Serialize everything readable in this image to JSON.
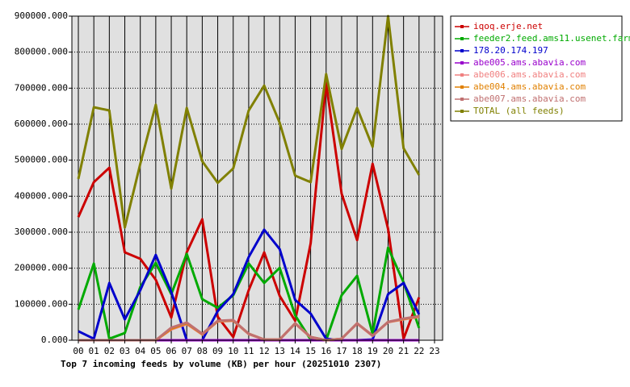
{
  "chart_data": {
    "type": "line",
    "title": "Top 7 incoming feeds by volume (KB) per hour (20251010 2307)",
    "categories": [
      "00",
      "01",
      "02",
      "03",
      "04",
      "05",
      "06",
      "07",
      "08",
      "09",
      "10",
      "11",
      "12",
      "13",
      "14",
      "15",
      "16",
      "17",
      "18",
      "19",
      "20",
      "21",
      "22",
      "23"
    ],
    "series": [
      {
        "name": "iqoq.erje.net",
        "color": "#cc0000",
        "values": [
          342000,
          439000,
          479000,
          244000,
          226000,
          168000,
          63000,
          244000,
          336000,
          65000,
          9000,
          139000,
          244000,
          123000,
          54000,
          269000,
          714000,
          407000,
          278000,
          490000,
          309000,
          4000,
          119000,
          null
        ]
      },
      {
        "name": "feeder2.feed.ams11.usenet.farm",
        "color": "#00aa00",
        "values": [
          85000,
          213000,
          4000,
          20000,
          148000,
          215000,
          128000,
          240000,
          114000,
          90000,
          125000,
          213000,
          159000,
          201000,
          69000,
          2000,
          0,
          125000,
          179000,
          18000,
          257000,
          161000,
          34000,
          null
        ]
      },
      {
        "name": "178.20.174.197",
        "color": "#0000cc",
        "values": [
          25000,
          4000,
          159000,
          58000,
          139000,
          237000,
          134000,
          0,
          0,
          81000,
          128000,
          231000,
          307000,
          253000,
          112000,
          74000,
          4000,
          0,
          0,
          2000,
          128000,
          159000,
          72000,
          null
        ]
      },
      {
        "name": "abe005.ams.abavia.com",
        "color": "#9900cc",
        "values": [
          0,
          0,
          0,
          0,
          0,
          0,
          0,
          0,
          0,
          0,
          0,
          0,
          0,
          0,
          0,
          0,
          0,
          0,
          0,
          0,
          0,
          0,
          0,
          null
        ]
      },
      {
        "name": "abe006.ams.abavia.com",
        "color": "#f08080",
        "values": [
          0,
          0,
          0,
          0,
          0,
          0,
          30000,
          45000,
          16000,
          52000,
          54000,
          17000,
          2000,
          2000,
          46000,
          8000,
          0,
          4000,
          46000,
          12000,
          50000,
          58000,
          65000,
          null
        ]
      },
      {
        "name": "abe004.ams.abavia.com",
        "color": "#e08000",
        "values": [
          0,
          0,
          0,
          0,
          0,
          0,
          32000,
          47000,
          17000,
          53000,
          55000,
          18000,
          2000,
          2000,
          47000,
          9000,
          0,
          4000,
          47000,
          13000,
          51000,
          59000,
          66000,
          null
        ]
      },
      {
        "name": "abe007.ams.abavia.com",
        "color": "#c07070",
        "values": [
          0,
          0,
          0,
          0,
          0,
          0,
          35000,
          49000,
          18000,
          54000,
          56000,
          18000,
          2000,
          2000,
          47000,
          9000,
          0,
          4000,
          47000,
          13000,
          51000,
          60000,
          67000,
          null
        ]
      },
      {
        "name": "TOTAL (all feeds)",
        "color": "#808000",
        "values": [
          448000,
          647000,
          638000,
          313000,
          490000,
          654000,
          421000,
          645000,
          497000,
          437000,
          477000,
          638000,
          707000,
          604000,
          457000,
          439000,
          739000,
          531000,
          645000,
          537000,
          900000,
          533000,
          459000,
          null
        ]
      }
    ],
    "ylim": [
      0,
      900000
    ],
    "yticks": [
      {
        "value": 0,
        "label": "0.000"
      },
      {
        "value": 100000,
        "label": "100000.000"
      },
      {
        "value": 200000,
        "label": "200000.000"
      },
      {
        "value": 300000,
        "label": "300000.000"
      },
      {
        "value": 400000,
        "label": "400000.000"
      },
      {
        "value": 500000,
        "label": "500000.000"
      },
      {
        "value": 600000,
        "label": "600000.000"
      },
      {
        "value": 700000,
        "label": "700000.000"
      },
      {
        "value": 800000,
        "label": "800000.000"
      },
      {
        "value": 900000,
        "label": "900000.000"
      }
    ],
    "grid": true
  }
}
